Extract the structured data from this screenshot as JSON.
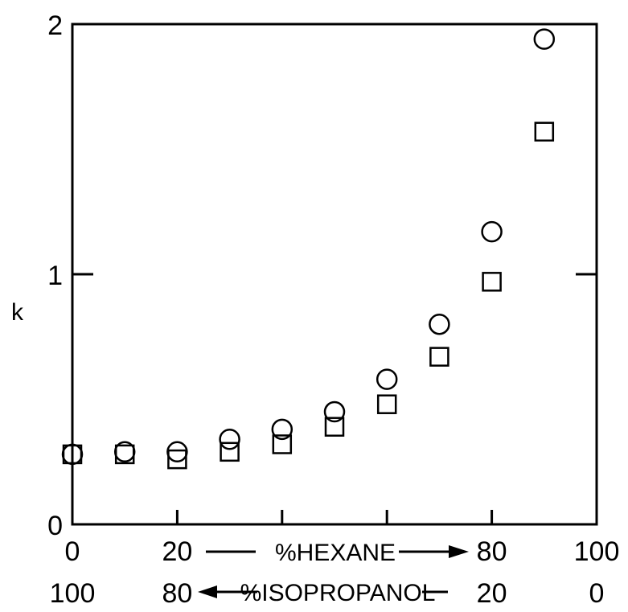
{
  "chart_data": {
    "type": "scatter",
    "title": "",
    "ylabel": "k",
    "xlabel_top": "%HEXANE",
    "xlabel_bottom": "%ISOPROPANOL",
    "xlim": [
      0,
      100
    ],
    "ylim": [
      0,
      2
    ],
    "x_ticks": [
      0,
      20,
      80,
      100
    ],
    "x_tick_labels_top": [
      "0",
      "20",
      "80",
      "100"
    ],
    "x_tick_labels_bottom": [
      "100",
      "80",
      "20",
      "0"
    ],
    "y_ticks": [
      0,
      1,
      2
    ],
    "y_tick_labels": [
      "0",
      "1",
      "2"
    ],
    "grid": false,
    "legend": "none",
    "series": [
      {
        "marker": "circle",
        "x": [
          0,
          10,
          20,
          30,
          40,
          50,
          60,
          70,
          80,
          90
        ],
        "y": [
          0.28,
          0.29,
          0.29,
          0.34,
          0.38,
          0.45,
          0.58,
          0.8,
          1.17,
          1.94
        ]
      },
      {
        "marker": "square",
        "x": [
          0,
          10,
          20,
          30,
          40,
          50,
          60,
          70,
          80,
          90
        ],
        "y": [
          0.28,
          0.28,
          0.26,
          0.29,
          0.32,
          0.39,
          0.48,
          0.67,
          0.97,
          1.57
        ]
      }
    ]
  }
}
